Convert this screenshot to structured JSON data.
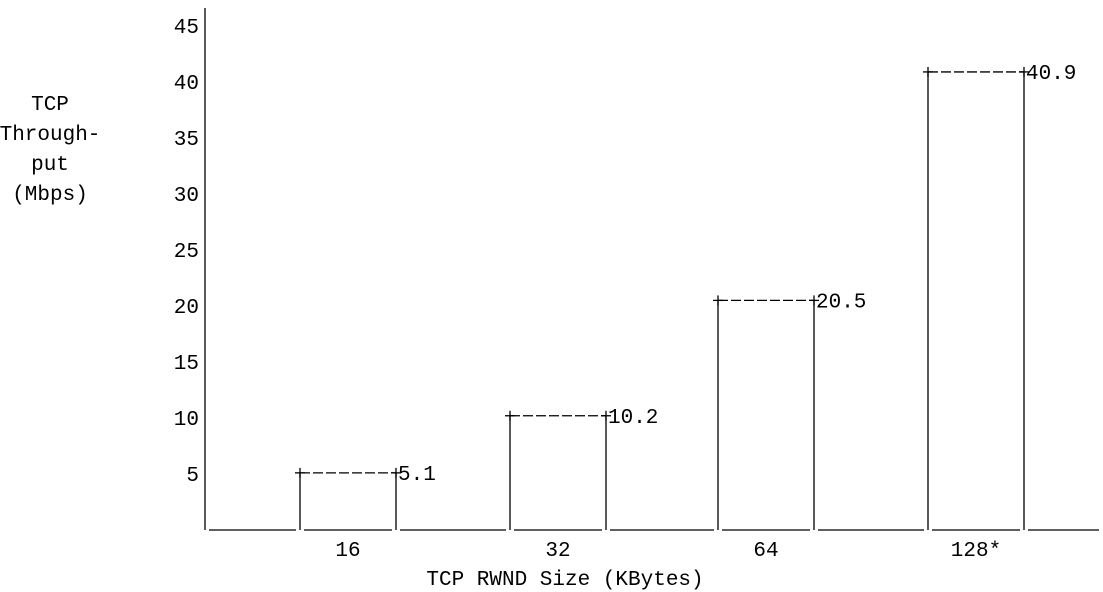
{
  "chart_data": {
    "type": "bar",
    "title": "",
    "ylabel_lines": [
      "TCP",
      "Through-",
      "put",
      "(Mbps)"
    ],
    "xlabel": "TCP RWND Size (KBytes)",
    "categories": [
      "16",
      "32",
      "64",
      "128*"
    ],
    "values": [
      5.1,
      10.2,
      20.5,
      40.9
    ],
    "value_labels": [
      "5.1",
      "10.2",
      "20.5",
      "40.9"
    ],
    "ylim": [
      0,
      45
    ],
    "yticks": [
      5,
      10,
      15,
      20,
      25,
      30,
      35,
      40,
      45
    ],
    "grid": false,
    "style": "ascii-art"
  },
  "colors": {
    "background": "#ffffff",
    "ink": "#000000"
  }
}
